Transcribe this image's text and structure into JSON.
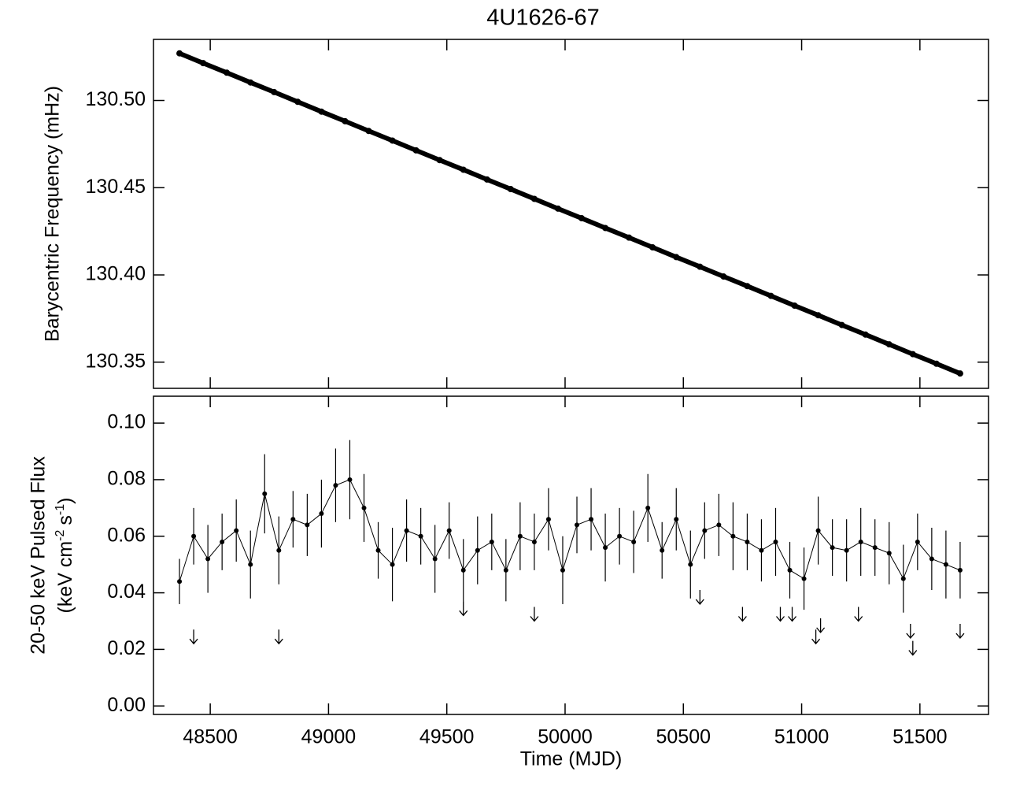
{
  "chart_data": [
    {
      "type": "scatter",
      "title": "4U1626-67",
      "ylabel": "Barycentric Frequency (mHz)",
      "color": "#000000",
      "x": [
        48370,
        48470,
        48570,
        48670,
        48770,
        48870,
        48970,
        49070,
        49170,
        49270,
        49370,
        49470,
        49570,
        49670,
        49770,
        49870,
        49970,
        50070,
        50170,
        50270,
        50370,
        50470,
        50570,
        50670,
        50770,
        50870,
        50970,
        51070,
        51170,
        51270,
        51370,
        51470,
        51570,
        51670
      ],
      "values": [
        130.527,
        130.5214,
        130.5159,
        130.5103,
        130.5048,
        130.4992,
        130.4936,
        130.4881,
        130.4825,
        130.477,
        130.4714,
        130.4658,
        130.4603,
        130.4547,
        130.4492,
        130.4436,
        130.438,
        130.4325,
        130.4269,
        130.4214,
        130.4158,
        130.4102,
        130.4047,
        130.3991,
        130.3936,
        130.388,
        130.3824,
        130.3769,
        130.3713,
        130.3658,
        130.3602,
        130.3546,
        130.3491,
        130.3435
      ],
      "xlim": [
        48260,
        51790
      ],
      "ylim": [
        130.335,
        130.535
      ],
      "xticks": [
        48500,
        49000,
        49500,
        50000,
        50500,
        51000,
        51500
      ],
      "yticks": [
        {
          "value": 130.35,
          "label": "130.35"
        },
        {
          "value": 130.4,
          "label": "130.40"
        },
        {
          "value": 130.45,
          "label": "130.45"
        },
        {
          "value": 130.5,
          "label": "130.50"
        }
      ]
    },
    {
      "type": "errorbar",
      "ylabel": "20-50 keV Pulsed Flux",
      "ylabel_units": [
        "(keV cm",
        "-2",
        "s",
        "-1",
        ")"
      ],
      "xlabel": "Time (MJD)",
      "color": "#000000",
      "x": [
        48370,
        48430,
        48490,
        48550,
        48610,
        48670,
        48730,
        48790,
        48850,
        48910,
        48970,
        49030,
        49090,
        49150,
        49210,
        49270,
        49330,
        49390,
        49450,
        49510,
        49570,
        49630,
        49690,
        49750,
        49810,
        49870,
        49930,
        49990,
        50050,
        50110,
        50170,
        50230,
        50290,
        50350,
        50410,
        50470,
        50530,
        50590,
        50650,
        50710,
        50770,
        50830,
        50890,
        50950,
        51010,
        51070,
        51130,
        51190,
        51250,
        51310,
        51370,
        51430,
        51490,
        51550,
        51610,
        51670
      ],
      "values": [
        0.044,
        0.06,
        0.052,
        0.058,
        0.062,
        0.05,
        0.075,
        0.055,
        0.066,
        0.064,
        0.068,
        0.078,
        0.08,
        0.07,
        0.055,
        0.05,
        0.062,
        0.06,
        0.052,
        0.062,
        0.048,
        0.055,
        0.058,
        0.048,
        0.06,
        0.058,
        0.066,
        0.048,
        0.064,
        0.066,
        0.056,
        0.06,
        0.058,
        0.07,
        0.055,
        0.066,
        0.05,
        0.062,
        0.064,
        0.06,
        0.058,
        0.055,
        0.058,
        0.048,
        0.045,
        0.062,
        0.056,
        0.055,
        0.058,
        0.056,
        0.054,
        0.045,
        0.058,
        0.052,
        0.05,
        0.048
      ],
      "errors": [
        0.008,
        0.01,
        0.012,
        0.01,
        0.011,
        0.012,
        0.014,
        0.012,
        0.01,
        0.011,
        0.012,
        0.013,
        0.014,
        0.012,
        0.01,
        0.013,
        0.011,
        0.01,
        0.012,
        0.01,
        0.011,
        0.012,
        0.01,
        0.011,
        0.012,
        0.01,
        0.011,
        0.012,
        0.01,
        0.011,
        0.012,
        0.01,
        0.011,
        0.012,
        0.01,
        0.011,
        0.012,
        0.01,
        0.011,
        0.012,
        0.01,
        0.011,
        0.012,
        0.01,
        0.011,
        0.012,
        0.01,
        0.011,
        0.012,
        0.01,
        0.011,
        0.012,
        0.01,
        0.011,
        0.012,
        0.01
      ],
      "upper_limits": {
        "x": [
          48430,
          48790,
          49570,
          49870,
          50570,
          50750,
          50910,
          50960,
          51060,
          51080,
          51240,
          51460,
          51470,
          51670
        ],
        "values": [
          0.022,
          0.022,
          0.032,
          0.03,
          0.036,
          0.03,
          0.03,
          0.03,
          0.022,
          0.026,
          0.03,
          0.024,
          0.018,
          0.024
        ]
      },
      "xlim": [
        48260,
        51790
      ],
      "ylim": [
        -0.003,
        0.1095
      ],
      "xticks": [
        48500,
        49000,
        49500,
        50000,
        50500,
        51000,
        51500
      ],
      "yticks": [
        {
          "value": 0,
          "label": "0.00"
        },
        {
          "value": 0.02,
          "label": "0.02"
        },
        {
          "value": 0.04,
          "label": "0.04"
        },
        {
          "value": 0.06,
          "label": "0.06"
        },
        {
          "value": 0.08,
          "label": "0.08"
        },
        {
          "value": 0.1,
          "label": "0.10"
        }
      ]
    }
  ]
}
